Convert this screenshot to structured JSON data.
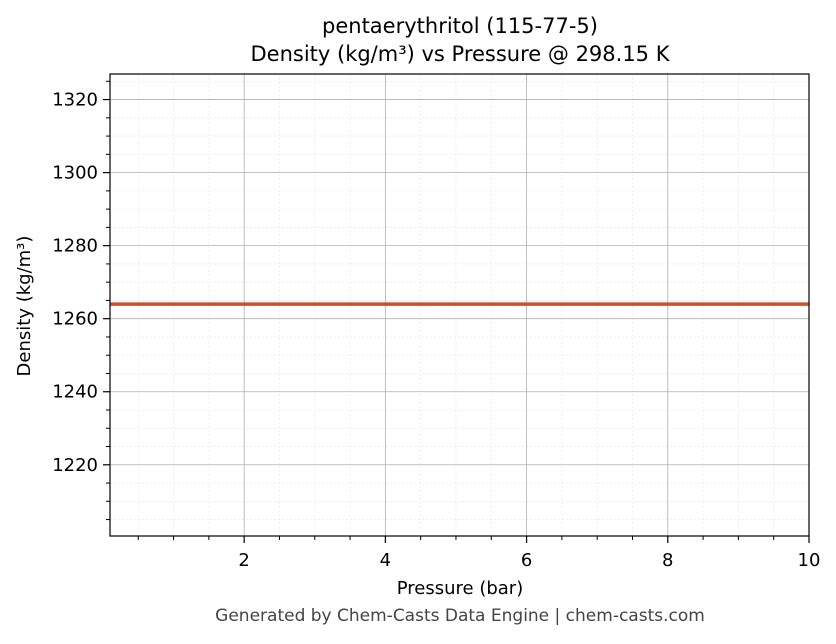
{
  "chart_data": {
    "type": "line",
    "title_line1": "pentaerythritol (115-77-5)",
    "title_line2": "Density (kg/m³) vs Pressure @ 298.15 K",
    "xlabel": "Pressure (bar)",
    "ylabel": "Density (kg/m³)",
    "xlim": [
      0.1,
      10
    ],
    "ylim": [
      1200.5,
      1327
    ],
    "x_ticks": [
      2,
      4,
      6,
      8,
      10
    ],
    "y_ticks": [
      1220,
      1240,
      1260,
      1280,
      1300,
      1320
    ],
    "grid": true,
    "minor_grid": true,
    "series": [
      {
        "color": "#c8522a",
        "x": [
          0.1,
          10
        ],
        "y": [
          1264,
          1264
        ]
      }
    ]
  },
  "footer": "Generated by Chem-Casts Data Engine | chem-casts.com"
}
